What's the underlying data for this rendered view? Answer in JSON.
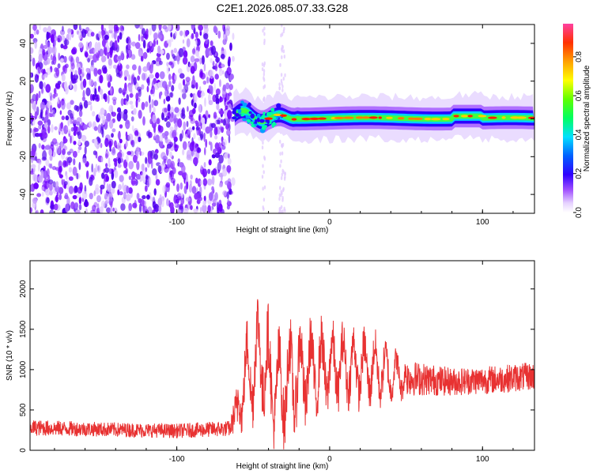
{
  "title": "C2E1.2026.085.07.33.G28",
  "chart_data": [
    {
      "type": "heatmap",
      "xlabel": "Height of straight line (km)",
      "ylabel": "Frequency (Hz)",
      "xlim": [
        -196,
        134
      ],
      "ylim": [
        -50,
        50
      ],
      "xticks": [
        -100,
        0,
        100
      ],
      "yticks": [
        -40,
        -20,
        0,
        20,
        40
      ],
      "colorbar": {
        "label": "Normalized spectral amplitude",
        "range": [
          0,
          0.97
        ],
        "ticks": [
          0.0,
          0.2,
          0.4,
          0.6,
          0.8
        ]
      },
      "features": {
        "noise_region_x": [
          -196,
          -63
        ],
        "signal_band_x": [
          -63,
          134
        ],
        "signal_center_hz": 0,
        "vertical_streaks_x": [
          -43,
          -32,
          -30
        ]
      }
    },
    {
      "type": "line",
      "xlabel": "Height of straight line (km)",
      "ylabel": "SNR (10 * v/v)",
      "xlim": [
        -196,
        134
      ],
      "ylim": [
        0,
        2350
      ],
      "xticks": [
        -100,
        0,
        100
      ],
      "yticks": [
        0,
        500,
        1000,
        1500,
        2000
      ],
      "color": "#e83232",
      "envelope": [
        {
          "x": -196,
          "mean": 280,
          "spread": 200
        },
        {
          "x": -150,
          "mean": 260,
          "spread": 180
        },
        {
          "x": -100,
          "mean": 240,
          "spread": 180
        },
        {
          "x": -65,
          "mean": 270,
          "spread": 200
        },
        {
          "x": -55,
          "mean": 900,
          "spread": 1100
        },
        {
          "x": -45,
          "mean": 1200,
          "spread": 1400
        },
        {
          "x": -35,
          "mean": 700,
          "spread": 1300
        },
        {
          "x": -25,
          "mean": 900,
          "spread": 1300
        },
        {
          "x": -10,
          "mean": 1000,
          "spread": 1100
        },
        {
          "x": 10,
          "mean": 1050,
          "spread": 900
        },
        {
          "x": 30,
          "mean": 1000,
          "spread": 800
        },
        {
          "x": 50,
          "mean": 900,
          "spread": 450
        },
        {
          "x": 80,
          "mean": 850,
          "spread": 350
        },
        {
          "x": 110,
          "mean": 880,
          "spread": 350
        },
        {
          "x": 134,
          "mean": 920,
          "spread": 350
        }
      ]
    }
  ]
}
